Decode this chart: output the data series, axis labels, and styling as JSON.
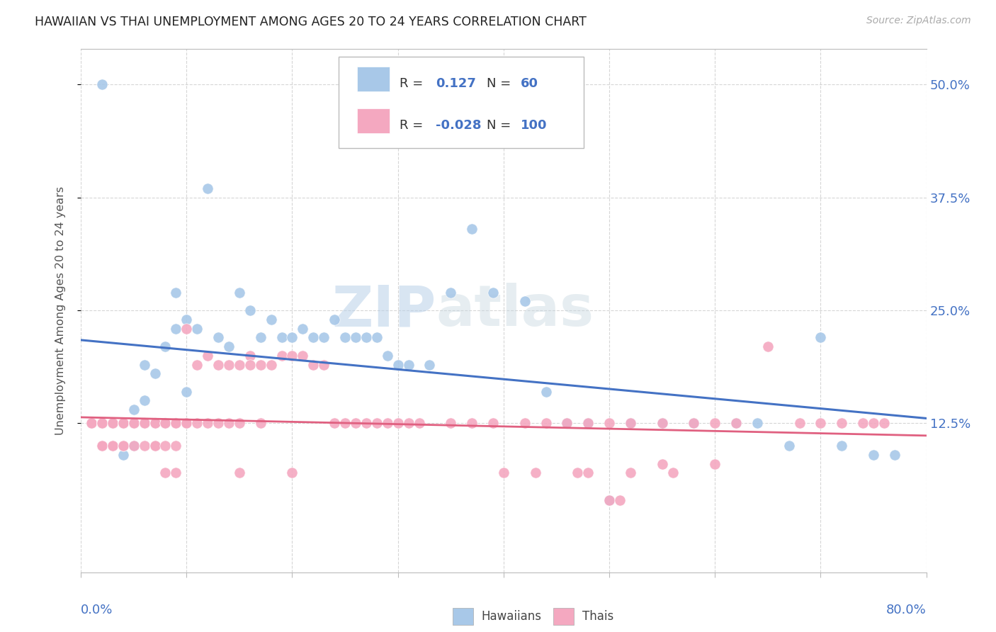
{
  "title": "HAWAIIAN VS THAI UNEMPLOYMENT AMONG AGES 20 TO 24 YEARS CORRELATION CHART",
  "source": "Source: ZipAtlas.com",
  "ylabel": "Unemployment Among Ages 20 to 24 years",
  "hawaiian_color": "#a8c8e8",
  "thai_color": "#f4a8c0",
  "hawaiian_line_color": "#4472c4",
  "thai_line_color": "#e06080",
  "watermark_color": "#dce8f4",
  "xlim": [
    0.0,
    0.8
  ],
  "ylim": [
    -0.04,
    0.54
  ],
  "ytick_vals": [
    0.125,
    0.25,
    0.375,
    0.5
  ],
  "ytick_labels": [
    "12.5%",
    "25.0%",
    "37.5%",
    "50.0%"
  ],
  "hawaiian_N": 60,
  "thai_N": 100,
  "hawaiian_x": [
    0.02,
    0.03,
    0.04,
    0.04,
    0.05,
    0.05,
    0.05,
    0.06,
    0.06,
    0.06,
    0.07,
    0.07,
    0.07,
    0.08,
    0.08,
    0.08,
    0.09,
    0.09,
    0.1,
    0.1,
    0.11,
    0.12,
    0.13,
    0.14,
    0.15,
    0.16,
    0.17,
    0.18,
    0.19,
    0.2,
    0.21,
    0.22,
    0.23,
    0.24,
    0.25,
    0.26,
    0.27,
    0.28,
    0.29,
    0.3,
    0.31,
    0.33,
    0.35,
    0.37,
    0.39,
    0.42,
    0.44,
    0.46,
    0.48,
    0.5,
    0.52,
    0.55,
    0.58,
    0.62,
    0.64,
    0.67,
    0.7,
    0.72,
    0.75,
    0.77
  ],
  "hawaiian_y": [
    0.5,
    0.125,
    0.125,
    0.09,
    0.14,
    0.125,
    0.1,
    0.15,
    0.19,
    0.125,
    0.125,
    0.18,
    0.125,
    0.125,
    0.21,
    0.125,
    0.23,
    0.27,
    0.16,
    0.24,
    0.23,
    0.385,
    0.22,
    0.21,
    0.27,
    0.25,
    0.22,
    0.24,
    0.22,
    0.22,
    0.23,
    0.22,
    0.22,
    0.24,
    0.22,
    0.22,
    0.22,
    0.22,
    0.2,
    0.19,
    0.19,
    0.19,
    0.27,
    0.34,
    0.27,
    0.26,
    0.16,
    0.125,
    0.125,
    0.04,
    0.125,
    0.125,
    0.125,
    0.125,
    0.125,
    0.1,
    0.22,
    0.1,
    0.09,
    0.09
  ],
  "thai_x": [
    0.01,
    0.01,
    0.02,
    0.02,
    0.02,
    0.02,
    0.02,
    0.03,
    0.03,
    0.03,
    0.03,
    0.04,
    0.04,
    0.04,
    0.04,
    0.04,
    0.05,
    0.05,
    0.05,
    0.05,
    0.06,
    0.06,
    0.06,
    0.06,
    0.07,
    0.07,
    0.07,
    0.07,
    0.08,
    0.08,
    0.08,
    0.09,
    0.09,
    0.09,
    0.1,
    0.1,
    0.11,
    0.11,
    0.12,
    0.12,
    0.13,
    0.13,
    0.14,
    0.14,
    0.15,
    0.15,
    0.16,
    0.16,
    0.17,
    0.17,
    0.18,
    0.19,
    0.2,
    0.21,
    0.22,
    0.23,
    0.24,
    0.25,
    0.26,
    0.27,
    0.28,
    0.29,
    0.3,
    0.31,
    0.32,
    0.35,
    0.37,
    0.39,
    0.42,
    0.44,
    0.46,
    0.48,
    0.5,
    0.52,
    0.55,
    0.58,
    0.6,
    0.62,
    0.65,
    0.68,
    0.7,
    0.72,
    0.74,
    0.75,
    0.76,
    0.1,
    0.15,
    0.2,
    0.4,
    0.47,
    0.48,
    0.5,
    0.51,
    0.52,
    0.55,
    0.08,
    0.09,
    0.43,
    0.56,
    0.6
  ],
  "thai_y": [
    0.125,
    0.125,
    0.125,
    0.125,
    0.1,
    0.1,
    0.125,
    0.125,
    0.125,
    0.1,
    0.1,
    0.125,
    0.125,
    0.1,
    0.125,
    0.1,
    0.125,
    0.125,
    0.1,
    0.125,
    0.125,
    0.125,
    0.1,
    0.125,
    0.125,
    0.1,
    0.125,
    0.1,
    0.125,
    0.125,
    0.1,
    0.125,
    0.125,
    0.1,
    0.125,
    0.125,
    0.19,
    0.125,
    0.2,
    0.125,
    0.19,
    0.125,
    0.19,
    0.125,
    0.19,
    0.125,
    0.2,
    0.19,
    0.19,
    0.125,
    0.19,
    0.2,
    0.2,
    0.2,
    0.19,
    0.19,
    0.125,
    0.125,
    0.125,
    0.125,
    0.125,
    0.125,
    0.125,
    0.125,
    0.125,
    0.125,
    0.125,
    0.125,
    0.125,
    0.125,
    0.125,
    0.125,
    0.125,
    0.125,
    0.125,
    0.125,
    0.125,
    0.125,
    0.21,
    0.125,
    0.125,
    0.125,
    0.125,
    0.125,
    0.125,
    0.23,
    0.07,
    0.07,
    0.07,
    0.07,
    0.07,
    0.04,
    0.04,
    0.07,
    0.08,
    0.07,
    0.07,
    0.07,
    0.07,
    0.08
  ]
}
